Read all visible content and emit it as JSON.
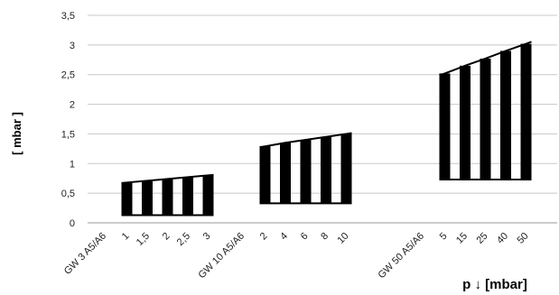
{
  "chart_data": {
    "type": "bar",
    "title": "",
    "xlabel": "p ↓ [mbar]",
    "ylabel": "[ mbar ]",
    "ylim": [
      0,
      3.5
    ],
    "y_ticks": [
      "0",
      "0,5",
      "1",
      "1,5",
      "2",
      "2,5",
      "3",
      "3,5"
    ],
    "grid": true,
    "legend": "none",
    "bar_color": "#000000",
    "gridline_color": "#c8c8c8",
    "groups": [
      {
        "label": "GW 3 A5/A6",
        "categories": [
          "1",
          "1,5",
          "2",
          "2,5",
          "3"
        ],
        "low": [
          0.13,
          0.13,
          0.13,
          0.13,
          0.13
        ],
        "high": [
          0.68,
          0.71,
          0.74,
          0.77,
          0.8
        ]
      },
      {
        "label": "GW 10 A5/A6",
        "categories": [
          "2",
          "4",
          "6",
          "8",
          "10"
        ],
        "low": [
          0.33,
          0.33,
          0.33,
          0.33,
          0.33
        ],
        "high": [
          1.29,
          1.35,
          1.4,
          1.45,
          1.5
        ]
      },
      {
        "label": "GW 50 A5/A6",
        "categories": [
          "5",
          "15",
          "25",
          "40",
          "50"
        ],
        "low": [
          0.73,
          0.73,
          0.73,
          0.73,
          0.73
        ],
        "high": [
          2.52,
          2.65,
          2.77,
          2.9,
          3.02
        ]
      }
    ]
  }
}
